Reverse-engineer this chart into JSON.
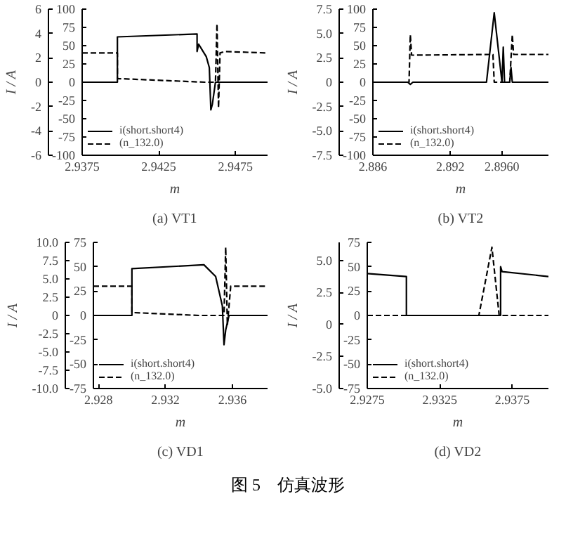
{
  "chart_data": [
    {
      "type": "line",
      "title": "(a) VT1",
      "xlabel": "m",
      "y2label": "I / A",
      "xlim": [
        2.9375,
        2.9496
      ],
      "xticks": [
        2.9375,
        2.9425,
        2.9475
      ],
      "ylim": [
        -100,
        100
      ],
      "yticks": [
        -100,
        -75,
        -50,
        -25,
        0,
        25,
        50,
        75,
        100
      ],
      "y2lim": [
        -6,
        6
      ],
      "y2ticks": [
        -6,
        -4,
        -2,
        0,
        2,
        4,
        6
      ],
      "grid": false,
      "legend": "bottom left",
      "series": [
        {
          "name": "i(short.short4)",
          "color": "#000000",
          "line_style": "solid",
          "x": [
            2.9375,
            2.9398,
            2.9398,
            2.945,
            2.945,
            2.9451,
            2.9456,
            2.9458,
            2.9459,
            2.946,
            2.9462,
            2.9496
          ],
          "values": [
            0,
            0,
            62,
            66,
            42,
            52,
            35,
            20,
            -38,
            -30,
            0,
            0
          ]
        },
        {
          "name": "(n_132.0)",
          "color": "#000000",
          "line_style": "dashed",
          "x": [
            2.9375,
            2.9398,
            2.9398,
            2.9455,
            2.9462,
            2.9463,
            2.9464,
            2.9465,
            2.9468,
            2.9496
          ],
          "values": [
            40,
            40,
            5,
            0,
            0,
            80,
            -35,
            40,
            42,
            40
          ]
        }
      ]
    },
    {
      "type": "line",
      "title": "(b) VT2",
      "xlabel": "m",
      "y2label": "I / A",
      "xlim": [
        2.886,
        2.8996
      ],
      "xticks": [
        2.886,
        2.892,
        {
          "value": 2.896,
          "label": "2.8960"
        }
      ],
      "ylim": [
        -100,
        100
      ],
      "yticks": [
        -100,
        -75,
        -50,
        -25,
        0,
        25,
        50,
        75,
        100
      ],
      "y2lim": [
        -7.5,
        7.5
      ],
      "y2ticks": [
        {
          "value": -7.5,
          "label": "-7.5"
        },
        {
          "value": -5,
          "label": "-5.0"
        },
        {
          "value": -2.5,
          "label": "-2.5"
        },
        0,
        {
          "value": 2.5,
          "label": "2.5"
        },
        {
          "value": 5,
          "label": "5.0"
        },
        {
          "value": 7.5,
          "label": "7.5"
        }
      ],
      "grid": false,
      "legend": "bottom left",
      "series": [
        {
          "name": "i(short.short4)",
          "color": "#000000",
          "line_style": "solid",
          "x": [
            2.886,
            2.8887,
            2.8889,
            2.8891,
            2.8948,
            2.8954,
            2.896,
            2.8961,
            2.8962,
            2.8966,
            2.8967,
            2.8968,
            2.8996
          ],
          "values": [
            0,
            0,
            -3,
            0,
            0,
            95,
            0,
            48,
            0,
            0,
            20,
            0,
            0
          ]
        },
        {
          "name": "(n_132.0)",
          "color": "#000000",
          "line_style": "dashed",
          "x": [
            2.886,
            2.8888,
            2.8889,
            2.889,
            2.8953,
            2.8954,
            2.8966,
            2.8968,
            2.8969,
            2.8996
          ],
          "values": [
            0,
            0,
            65,
            37,
            38,
            0,
            0,
            65,
            38,
            38
          ]
        }
      ]
    },
    {
      "type": "line",
      "title": "(c) VD1",
      "xlabel": "m",
      "y2label": "I / A",
      "xlim": [
        2.9277,
        2.9381
      ],
      "xticks": [
        2.928,
        2.932,
        2.936
      ],
      "ylim": [
        -75,
        75
      ],
      "yticks": [
        -75,
        -50,
        -25,
        0,
        25,
        50,
        75
      ],
      "y2lim": [
        -10,
        10
      ],
      "y2ticks": [
        {
          "value": -10,
          "label": "-10.0"
        },
        {
          "value": -7.5,
          "label": "-7.5"
        },
        {
          "value": -5,
          "label": "-5.0"
        },
        {
          "value": -2.5,
          "label": "-2.5"
        },
        0,
        {
          "value": 2.5,
          "label": "2.5"
        },
        {
          "value": 5,
          "label": "5.0"
        },
        {
          "value": 7.5,
          "label": "7.5"
        },
        {
          "value": 10,
          "label": "10.0"
        }
      ],
      "grid": false,
      "legend": "bottom left",
      "series": [
        {
          "name": "i(short.short4)",
          "color": "#000000",
          "line_style": "solid",
          "x": [
            2.9277,
            2.93,
            2.93,
            2.9343,
            2.935,
            2.9354,
            2.9355,
            2.9356,
            2.9358,
            2.9381
          ],
          "values": [
            0,
            0,
            48,
            52,
            40,
            10,
            -30,
            -15,
            0,
            0
          ]
        },
        {
          "name": "(n_132.0)",
          "color": "#000000",
          "line_style": "dashed",
          "x": [
            2.9277,
            2.93,
            2.93,
            2.934,
            2.9355,
            2.9356,
            2.9357,
            2.9359,
            2.9381
          ],
          "values": [
            30,
            30,
            3,
            0,
            0,
            70,
            -10,
            30,
            30
          ]
        }
      ]
    },
    {
      "type": "line",
      "title": "(d) VD2",
      "xlabel": "m",
      "y2label": "I / A",
      "xlim": [
        2.9275,
        2.94
      ],
      "xticks": [
        2.9275,
        2.9325,
        2.9375
      ],
      "ylim": [
        -75,
        75
      ],
      "yticks": [
        -75,
        -50,
        -25,
        0,
        25,
        50,
        75
      ],
      "y2lim": [
        -5,
        6.4
      ],
      "y2ticks": [
        {
          "value": -5,
          "label": "-5.0"
        },
        {
          "value": -2.5,
          "label": "-2.5"
        },
        0,
        {
          "value": 2.5,
          "label": "2.5"
        },
        {
          "value": 5,
          "label": "5.0"
        }
      ],
      "grid": false,
      "legend": "bottom left",
      "annotations": [
        "图 5　仿真波形"
      ],
      "series": [
        {
          "name": "i(short.short4)",
          "color": "#000000",
          "line_style": "solid",
          "x": [
            2.9275,
            2.9302,
            2.9302,
            2.9367,
            2.9367,
            2.9368,
            2.94
          ],
          "values": [
            43,
            40,
            0,
            0,
            50,
            45,
            40
          ]
        },
        {
          "name": "(n_132.0)",
          "color": "#000000",
          "line_style": "dashed",
          "x": [
            2.9275,
            2.9352,
            2.9361,
            2.9366,
            2.94
          ],
          "values": [
            0,
            0,
            70,
            0,
            0
          ]
        }
      ]
    }
  ]
}
